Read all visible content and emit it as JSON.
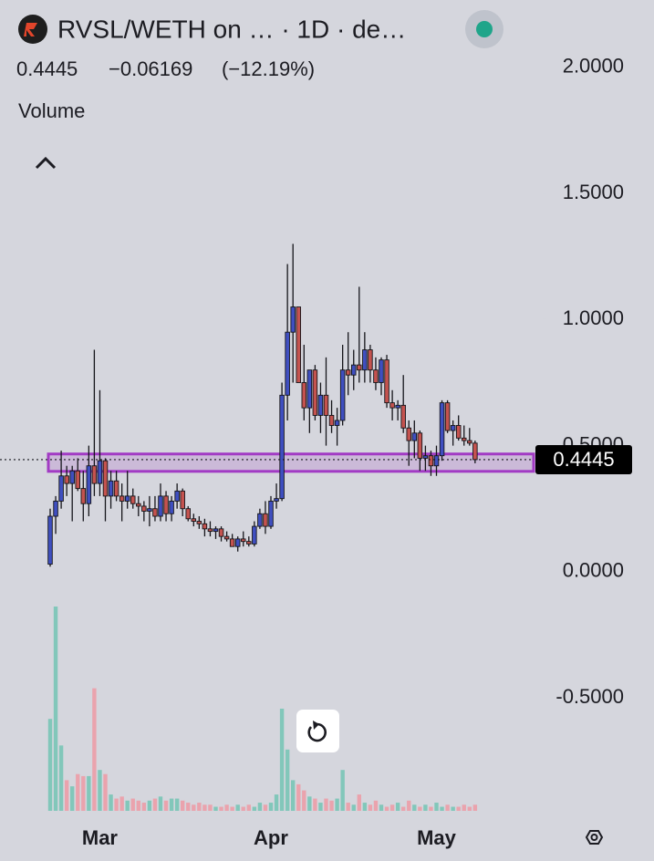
{
  "chart_data": {
    "type": "candlestick",
    "title": "RVSL/WETH on … · 1D · de…",
    "last": 0.4445,
    "change": {
      "value": -0.06169,
      "label": "−0.06169"
    },
    "change_pct": {
      "value": -12.19,
      "label": "(−12.19%)"
    },
    "volume_label": "Volume",
    "categories": [
      null,
      null,
      null,
      null,
      null,
      null,
      null,
      null,
      null,
      "Mar",
      null,
      null,
      null,
      null,
      null,
      null,
      null,
      null,
      null,
      null,
      null,
      null,
      null,
      null,
      null,
      null,
      null,
      null,
      null,
      null,
      null,
      null,
      null,
      null,
      null,
      null,
      null,
      null,
      null,
      null,
      "Apr",
      null,
      null,
      null,
      null,
      null,
      null,
      null,
      null,
      null,
      null,
      null,
      null,
      null,
      null,
      null,
      null,
      null,
      null,
      null,
      null,
      null,
      null,
      null,
      null,
      null,
      null,
      null,
      null,
      null,
      "May",
      null,
      null,
      null,
      null,
      null,
      null,
      null
    ],
    "open": [
      0.03,
      0.22,
      0.28,
      0.38,
      0.35,
      0.4,
      0.33,
      0.27,
      0.42,
      0.35,
      0.44,
      0.3,
      0.36,
      0.3,
      0.28,
      0.3,
      0.27,
      0.26,
      0.24,
      0.25,
      0.22,
      0.3,
      0.23,
      0.28,
      0.32,
      0.25,
      0.21,
      0.2,
      0.19,
      0.17,
      0.16,
      0.17,
      0.14,
      0.13,
      0.1,
      0.13,
      0.12,
      0.11,
      0.18,
      0.23,
      0.18,
      0.28,
      0.29,
      0.7,
      0.95,
      1.05,
      0.75,
      0.65,
      0.8,
      0.62,
      0.7,
      0.62,
      0.58,
      0.6,
      0.8,
      0.78,
      0.82,
      0.8,
      0.88,
      0.8,
      0.75,
      0.84,
      0.67,
      0.65,
      0.66,
      0.57,
      0.52,
      0.55,
      0.45,
      0.46,
      0.42,
      0.46,
      0.67,
      0.56,
      0.58,
      0.53,
      0.52,
      0.51
    ],
    "high": [
      0.25,
      0.3,
      0.48,
      0.42,
      0.42,
      0.45,
      0.4,
      0.5,
      0.88,
      0.72,
      0.45,
      0.4,
      0.4,
      0.35,
      0.4,
      0.33,
      0.3,
      0.28,
      0.3,
      0.3,
      0.35,
      0.32,
      0.3,
      0.35,
      0.33,
      0.26,
      0.23,
      0.22,
      0.21,
      0.2,
      0.18,
      0.18,
      0.16,
      0.15,
      0.14,
      0.16,
      0.14,
      0.2,
      0.25,
      0.28,
      0.3,
      0.35,
      0.75,
      1.22,
      1.3,
      1.05,
      0.9,
      0.8,
      0.82,
      0.75,
      0.85,
      0.68,
      0.65,
      0.9,
      0.95,
      0.88,
      1.13,
      0.95,
      0.9,
      0.85,
      0.85,
      0.86,
      0.72,
      0.68,
      0.78,
      0.6,
      0.6,
      0.56,
      0.5,
      0.48,
      0.5,
      0.68,
      0.68,
      0.6,
      0.62,
      0.58,
      0.57,
      0.52
    ],
    "low": [
      0.02,
      0.15,
      0.25,
      0.3,
      0.2,
      0.32,
      0.2,
      0.22,
      0.3,
      0.3,
      0.2,
      0.25,
      0.28,
      0.2,
      0.25,
      0.25,
      0.22,
      0.2,
      0.18,
      0.2,
      0.2,
      0.2,
      0.2,
      0.25,
      0.22,
      0.2,
      0.18,
      0.17,
      0.14,
      0.14,
      0.13,
      0.12,
      0.12,
      0.1,
      0.08,
      0.1,
      0.1,
      0.1,
      0.17,
      0.15,
      0.17,
      0.25,
      0.28,
      0.6,
      0.75,
      0.75,
      0.6,
      0.55,
      0.6,
      0.55,
      0.5,
      0.55,
      0.5,
      0.58,
      0.7,
      0.72,
      0.75,
      0.75,
      0.75,
      0.72,
      0.7,
      0.65,
      0.6,
      0.6,
      0.55,
      0.42,
      0.45,
      0.4,
      0.4,
      0.38,
      0.38,
      0.44,
      0.55,
      0.5,
      0.52,
      0.5,
      0.5,
      0.43
    ],
    "close": [
      0.22,
      0.28,
      0.38,
      0.35,
      0.4,
      0.33,
      0.27,
      0.42,
      0.35,
      0.44,
      0.3,
      0.36,
      0.3,
      0.28,
      0.3,
      0.27,
      0.26,
      0.24,
      0.25,
      0.22,
      0.3,
      0.23,
      0.28,
      0.32,
      0.25,
      0.21,
      0.2,
      0.19,
      0.17,
      0.16,
      0.17,
      0.14,
      0.13,
      0.1,
      0.13,
      0.12,
      0.11,
      0.18,
      0.23,
      0.18,
      0.28,
      0.29,
      0.7,
      0.95,
      1.05,
      0.75,
      0.65,
      0.8,
      0.62,
      0.7,
      0.62,
      0.58,
      0.6,
      0.8,
      0.78,
      0.82,
      0.8,
      0.88,
      0.8,
      0.75,
      0.84,
      0.67,
      0.65,
      0.66,
      0.57,
      0.52,
      0.55,
      0.45,
      0.46,
      0.42,
      0.46,
      0.67,
      0.56,
      0.58,
      0.53,
      0.52,
      0.51,
      0.4445
    ],
    "volume": [
      45,
      100,
      32,
      15,
      12,
      18,
      17,
      17,
      60,
      20,
      18,
      8,
      6,
      7,
      5,
      6,
      5,
      4,
      5,
      6,
      7,
      5,
      6,
      6,
      5,
      4,
      3,
      4,
      3,
      3,
      2,
      2,
      3,
      2,
      3,
      2,
      3,
      2,
      4,
      3,
      4,
      8,
      50,
      30,
      15,
      13,
      10,
      7,
      6,
      4,
      6,
      5,
      6,
      20,
      4,
      3,
      8,
      4,
      3,
      5,
      3,
      2,
      3,
      4,
      2,
      5,
      3,
      2,
      3,
      2,
      4,
      2,
      3,
      2,
      2,
      3,
      2,
      3
    ],
    "up_color": "#3f4fc0",
    "down_color": "#c4534f",
    "volume_up_color": "#82c7ba",
    "volume_down_color": "#eaa3ad",
    "zone": [
      0.398,
      0.467
    ],
    "zone_color": "#a23bc4",
    "ylim": [
      -0.97,
      2.195
    ],
    "yticks": [
      {
        "value": 2,
        "label": "2.0000"
      },
      {
        "value": 1.5,
        "label": "1.5000"
      },
      {
        "value": 1,
        "label": "1.0000"
      },
      {
        "value": 0.5,
        "label": "0.5000"
      },
      {
        "value": 0,
        "label": "0.0000"
      },
      {
        "value": -0.5,
        "label": "-0.5000"
      }
    ]
  }
}
